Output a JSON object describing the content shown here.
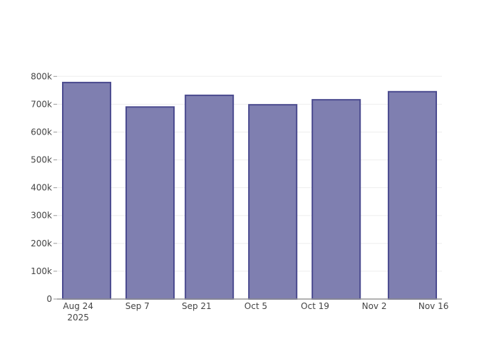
{
  "chart_data": {
    "type": "bar",
    "title": "",
    "xlabel": "",
    "ylabel": "",
    "x": [
      "2025-08-26",
      "2025-09-10",
      "2025-09-24",
      "2025-10-09",
      "2025-10-24",
      "2025-11-11"
    ],
    "values": [
      778000,
      690000,
      732000,
      698000,
      716000,
      745000
    ],
    "bar_width_days": 11.3,
    "xlim": [
      "2025-08-19",
      "2025-11-18"
    ],
    "ylim": [
      0,
      800000
    ],
    "x_ticks": [
      {
        "date": "2025-08-24",
        "label": "Aug 24",
        "sub": "2025"
      },
      {
        "date": "2025-09-07",
        "label": "Sep 7"
      },
      {
        "date": "2025-09-21",
        "label": "Sep 21"
      },
      {
        "date": "2025-10-05",
        "label": "Oct 5"
      },
      {
        "date": "2025-10-19",
        "label": "Oct 19"
      },
      {
        "date": "2025-11-02",
        "label": "Nov 2"
      },
      {
        "date": "2025-11-16",
        "label": "Nov 16"
      }
    ],
    "y_ticks": [
      {
        "value": 0,
        "label": "0"
      },
      {
        "value": 100000,
        "label": "100k"
      },
      {
        "value": 200000,
        "label": "200k"
      },
      {
        "value": 300000,
        "label": "300k"
      },
      {
        "value": 400000,
        "label": "400k"
      },
      {
        "value": 500000,
        "label": "500k"
      },
      {
        "value": 600000,
        "label": "600k"
      },
      {
        "value": 700000,
        "label": "700k"
      },
      {
        "value": 800000,
        "label": "800k"
      }
    ],
    "grid": true,
    "colors": {
      "bar_fill": "#7f7fb0",
      "bar_stroke": "#4b4b8f",
      "grid": "#eeeeee",
      "axis": "#999999"
    }
  }
}
